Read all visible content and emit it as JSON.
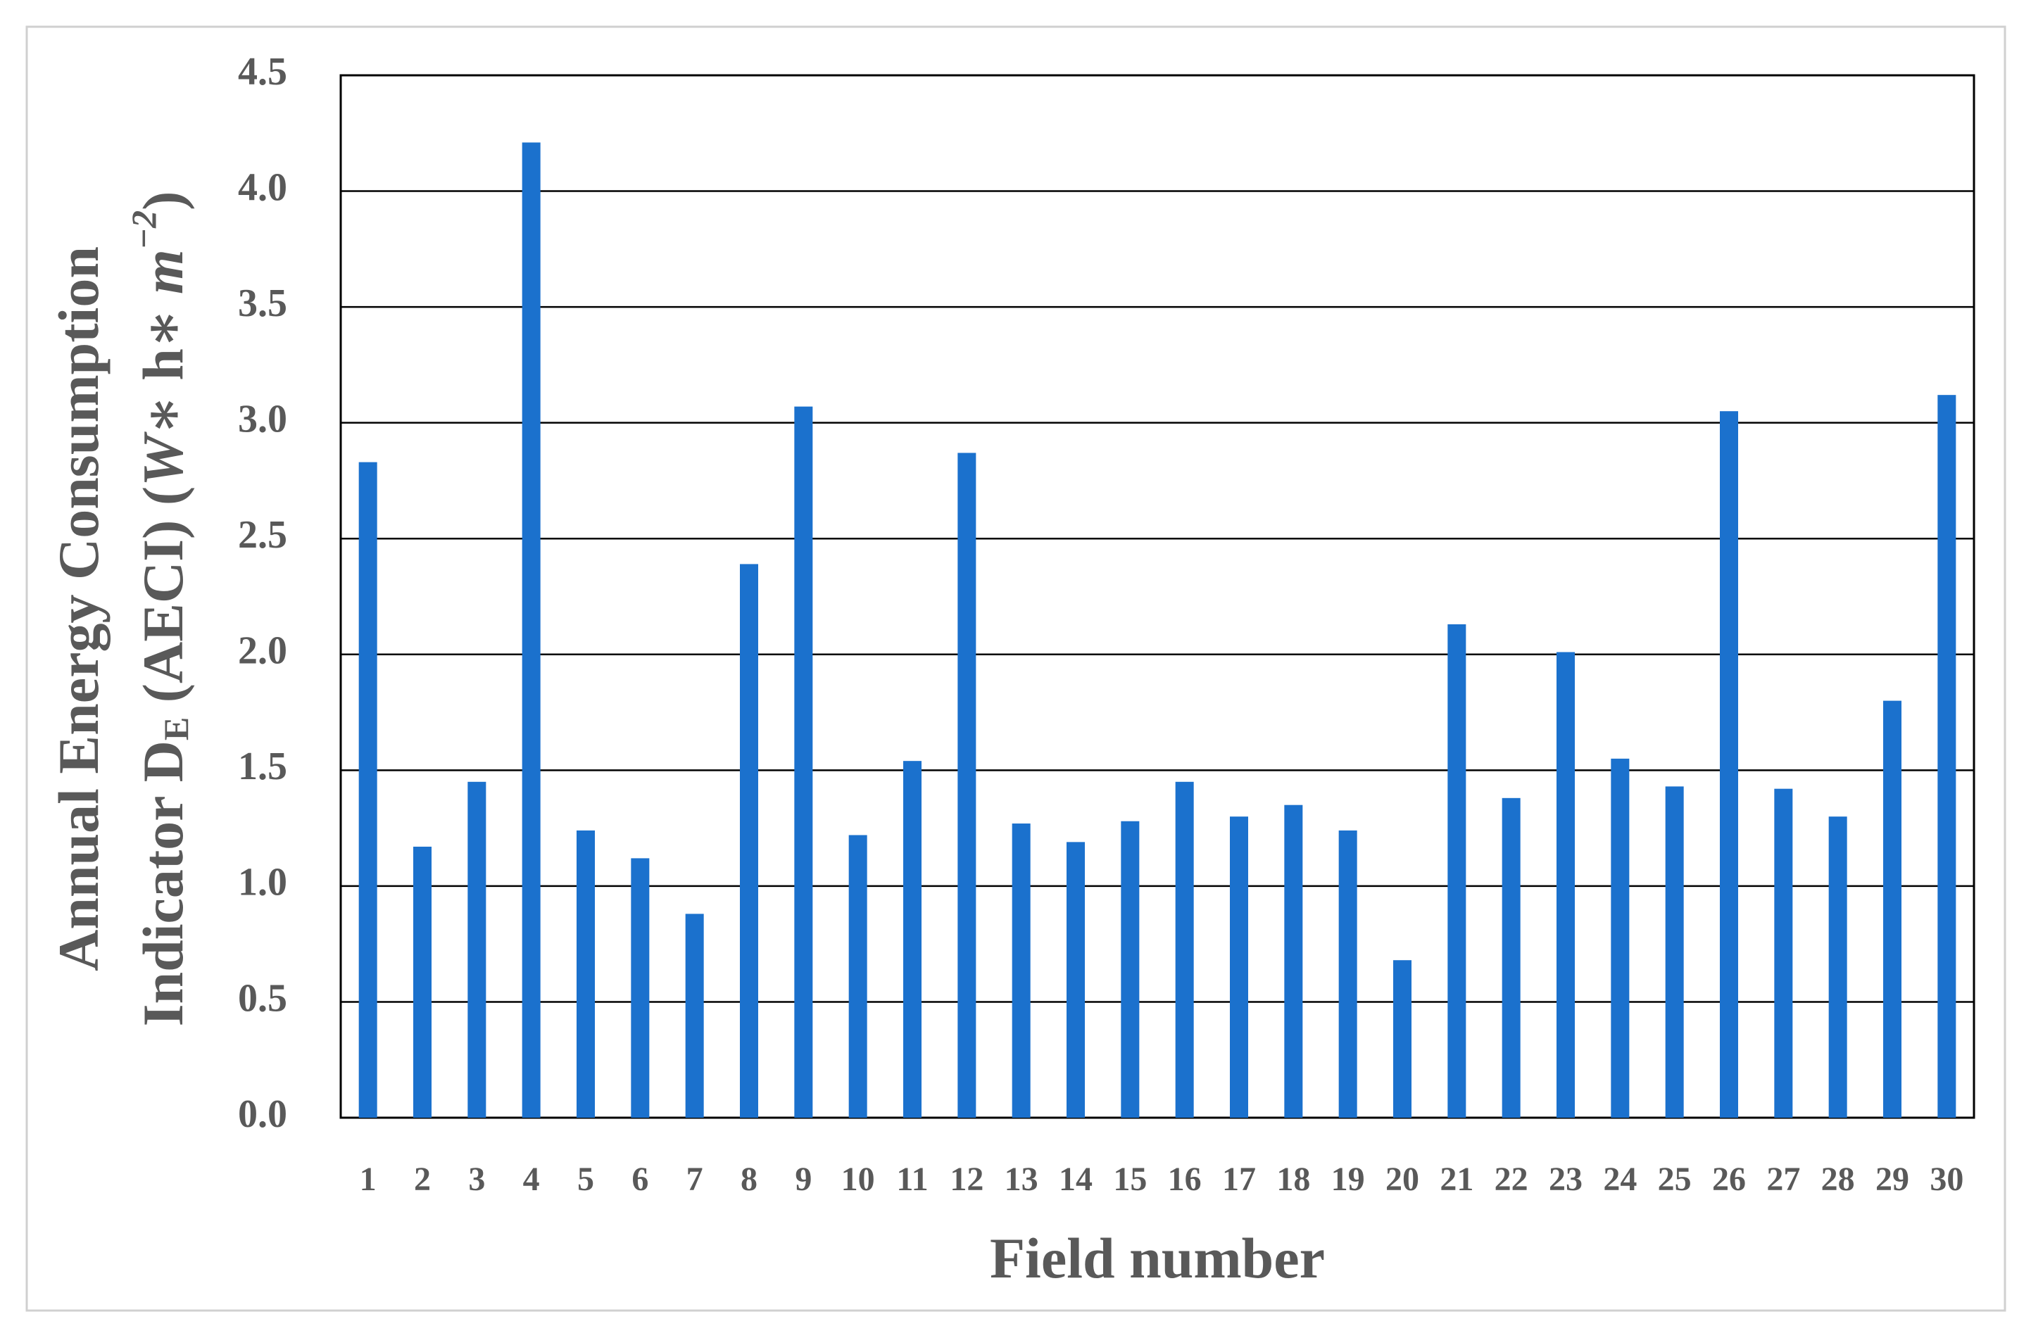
{
  "chart_data": {
    "type": "bar",
    "x_label": "Field number",
    "y_label": {
      "line1": "Annual Energy Consumption",
      "line2": [
        "Indicator D",
        "E",
        " (AECI) (",
        "W",
        "∗ h∗ ",
        "m",
        "−2",
        ")"
      ]
    },
    "categories": [
      "1",
      "2",
      "3",
      "4",
      "5",
      "6",
      "7",
      "8",
      "9",
      "10",
      "11",
      "12",
      "13",
      "14",
      "15",
      "16",
      "17",
      "18",
      "19",
      "20",
      "21",
      "22",
      "23",
      "24",
      "25",
      "26",
      "27",
      "28",
      "29",
      "30"
    ],
    "values": [
      2.83,
      1.17,
      1.45,
      4.21,
      1.24,
      1.12,
      0.88,
      2.39,
      3.07,
      1.22,
      1.54,
      2.87,
      1.27,
      1.19,
      1.28,
      1.45,
      1.3,
      1.35,
      1.24,
      0.68,
      2.13,
      1.38,
      2.01,
      1.55,
      1.43,
      3.05,
      1.42,
      1.3,
      1.8,
      3.12
    ],
    "color": "#1b71cd",
    "ylim": [
      0,
      4.5
    ],
    "yticks": [
      {
        "value": 0,
        "label": "0.0"
      },
      0.5,
      {
        "value": 1,
        "label": "1.0"
      },
      1.5,
      {
        "value": 2,
        "label": "2.0"
      },
      2.5,
      {
        "value": 3,
        "label": "3.0"
      },
      3.5,
      {
        "value": 4,
        "label": "4.0"
      },
      4.5
    ],
    "grid": true
  }
}
